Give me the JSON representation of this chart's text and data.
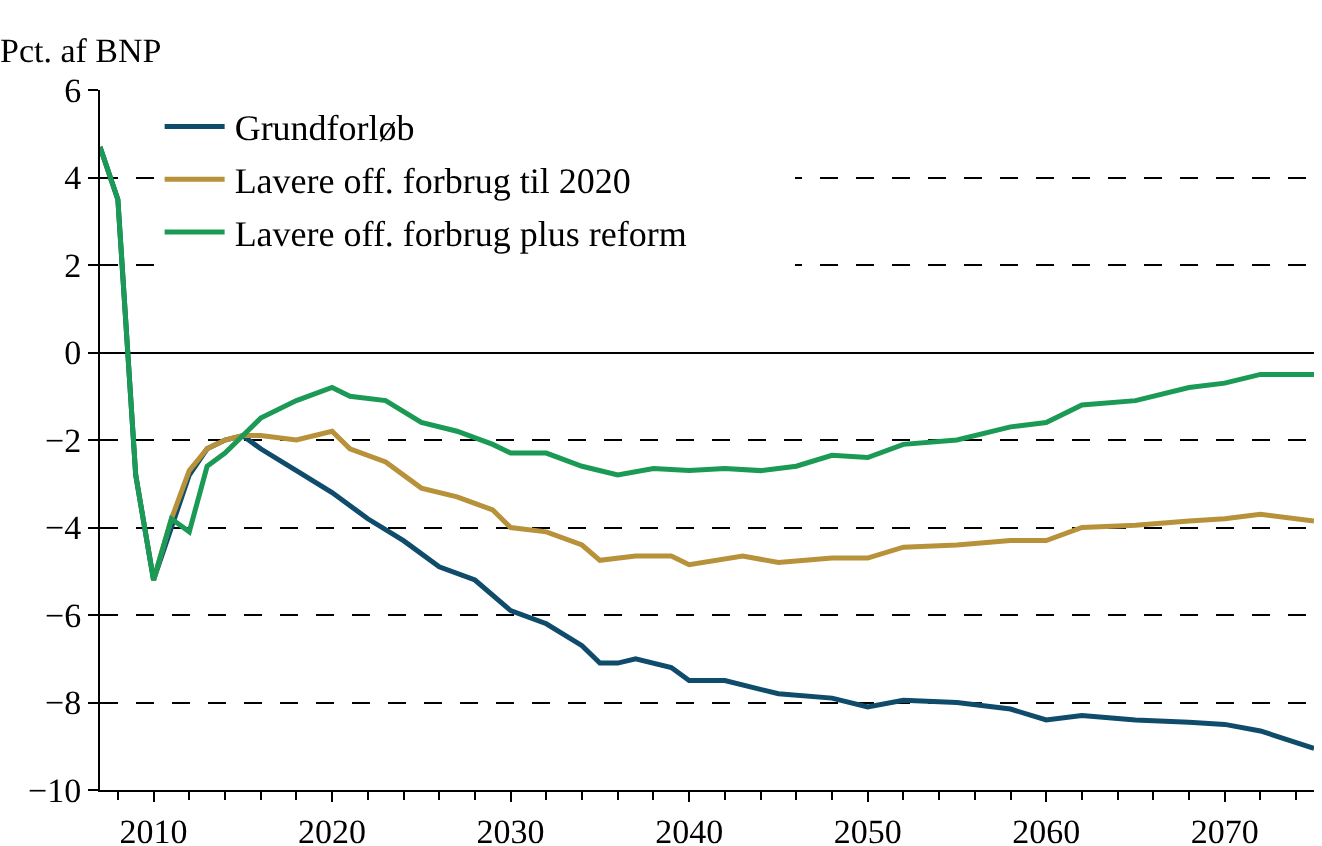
{
  "chart_data": {
    "type": "line",
    "ylabel": "Pct. af BNP",
    "xlim": [
      2007,
      2075
    ],
    "xticks": [
      2010,
      2020,
      2030,
      2040,
      2050,
      2060,
      2070
    ],
    "ylim": [
      -10,
      6
    ],
    "yticks": [
      -10,
      -8,
      -6,
      -4,
      -2,
      0,
      2,
      4,
      6
    ],
    "grid": "y",
    "legend": "top",
    "line_style": "solid",
    "marker": "none",
    "series": [
      {
        "name": "Grundforløb",
        "color": "#0f4c6b",
        "x": [
          2007,
          2008,
          2009,
          2010,
          2011,
          2012,
          2013,
          2014,
          2015,
          2016,
          2018,
          2020,
          2022,
          2024,
          2026,
          2028,
          2030,
          2032,
          2034,
          2035,
          2036,
          2037,
          2039,
          2040,
          2042,
          2045,
          2048,
          2050,
          2052,
          2055,
          2058,
          2060,
          2062,
          2065,
          2068,
          2070,
          2072,
          2075
        ],
        "values": [
          4.7,
          3.5,
          -2.8,
          -5.2,
          -4.0,
          -2.8,
          -2.2,
          -2.0,
          -1.9,
          -2.2,
          -2.7,
          -3.2,
          -3.8,
          -4.3,
          -4.9,
          -5.2,
          -5.9,
          -6.2,
          -6.7,
          -7.1,
          -7.1,
          -7.0,
          -7.2,
          -7.5,
          -7.5,
          -7.8,
          -7.9,
          -8.1,
          -7.95,
          -8.0,
          -8.15,
          -8.4,
          -8.3,
          -8.4,
          -8.45,
          -8.5,
          -8.65,
          -9.05
        ]
      },
      {
        "name": "Lavere off. forbrug til 2020",
        "color": "#b8923a",
        "x": [
          2010,
          2011,
          2012,
          2013,
          2014,
          2015,
          2016,
          2018,
          2020,
          2021,
          2023,
          2025,
          2027,
          2029,
          2030,
          2032,
          2034,
          2035,
          2037,
          2039,
          2040,
          2043,
          2045,
          2048,
          2050,
          2052,
          2055,
          2058,
          2060,
          2062,
          2065,
          2068,
          2070,
          2072,
          2075
        ],
        "values": [
          -5.2,
          -3.8,
          -2.7,
          -2.2,
          -2.0,
          -1.9,
          -1.9,
          -2.0,
          -1.8,
          -2.2,
          -2.5,
          -3.1,
          -3.3,
          -3.6,
          -4.0,
          -4.1,
          -4.4,
          -4.75,
          -4.65,
          -4.65,
          -4.85,
          -4.65,
          -4.8,
          -4.7,
          -4.7,
          -4.45,
          -4.4,
          -4.3,
          -4.3,
          -4.0,
          -3.95,
          -3.85,
          -3.8,
          -3.7,
          -3.85
        ]
      },
      {
        "name": "Lavere off. forbrug plus reform",
        "color": "#1a9a55",
        "x": [
          2007,
          2008,
          2009,
          2010,
          2011,
          2012,
          2013,
          2014,
          2016,
          2018,
          2020,
          2021,
          2023,
          2025,
          2027,
          2029,
          2030,
          2032,
          2034,
          2036,
          2038,
          2040,
          2042,
          2044,
          2046,
          2048,
          2050,
          2052,
          2055,
          2058,
          2060,
          2062,
          2065,
          2068,
          2070,
          2072,
          2075
        ],
        "values": [
          4.7,
          3.5,
          -2.8,
          -5.2,
          -3.8,
          -4.1,
          -2.6,
          -2.3,
          -1.5,
          -1.1,
          -0.8,
          -1.0,
          -1.1,
          -1.6,
          -1.8,
          -2.1,
          -2.3,
          -2.3,
          -2.6,
          -2.8,
          -2.65,
          -2.7,
          -2.65,
          -2.7,
          -2.6,
          -2.35,
          -2.4,
          -2.1,
          -2.0,
          -1.7,
          -1.6,
          -1.2,
          -1.1,
          -0.8,
          -0.7,
          -0.5,
          -0.5
        ]
      }
    ]
  }
}
